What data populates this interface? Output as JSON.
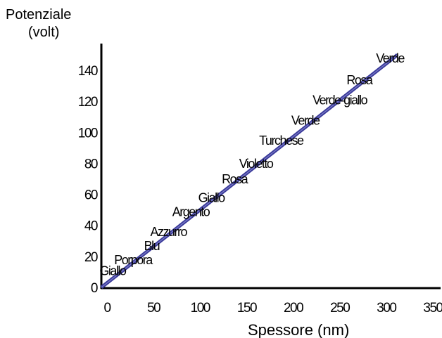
{
  "chart_data": {
    "type": "line",
    "ylabel_line1": "Potenziale",
    "ylabel_line2": "(volt)",
    "xlabel": "Spessore (nm)",
    "xlim": [
      0,
      350
    ],
    "ylim": [
      0,
      150
    ],
    "x_ticks": [
      "0",
      "50",
      "100",
      "150",
      "200",
      "250",
      "300",
      "350"
    ],
    "y_ticks": [
      "0",
      "20",
      "40",
      "60",
      "80",
      "100",
      "120",
      "140"
    ],
    "line_color": "#3a3a9a",
    "series": [
      {
        "x": [
          0,
          318
        ],
        "y": [
          0,
          150
        ]
      }
    ],
    "annotations": [
      {
        "text": "Giallo",
        "x": 12,
        "y": 8
      },
      {
        "text": "Porpora",
        "x": 34,
        "y": 15
      },
      {
        "text": "Blu",
        "x": 54,
        "y": 24
      },
      {
        "text": "Azzurro",
        "x": 72,
        "y": 33
      },
      {
        "text": "Argento",
        "x": 96,
        "y": 46
      },
      {
        "text": "Giallo",
        "x": 118,
        "y": 55
      },
      {
        "text": "Rosa",
        "x": 143,
        "y": 67
      },
      {
        "text": "Violetto",
        "x": 166,
        "y": 77
      },
      {
        "text": "Turchese",
        "x": 193,
        "y": 92
      },
      {
        "text": "Verde",
        "x": 219,
        "y": 105
      },
      {
        "text": "Verde-giallo",
        "x": 256,
        "y": 118
      },
      {
        "text": "Rosa",
        "x": 277,
        "y": 131
      },
      {
        "text": "Verde",
        "x": 310,
        "y": 145
      }
    ]
  }
}
